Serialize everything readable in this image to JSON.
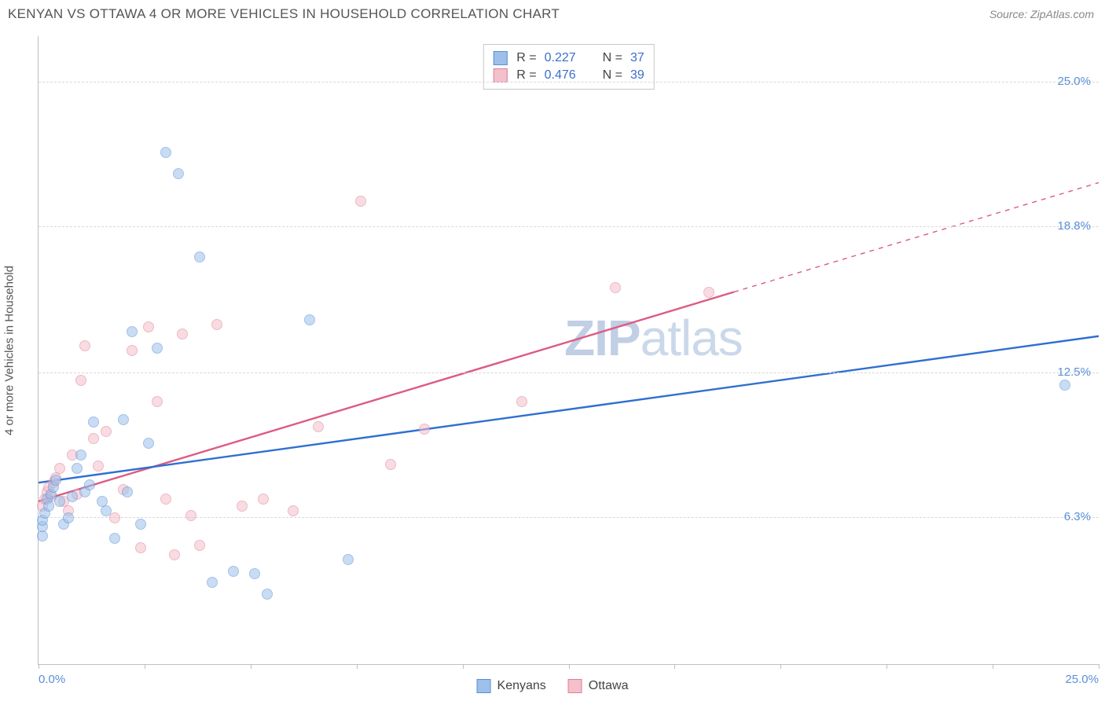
{
  "header": {
    "title": "KENYAN VS OTTAWA 4 OR MORE VEHICLES IN HOUSEHOLD CORRELATION CHART",
    "source_label": "Source: ZipAtlas.com"
  },
  "watermark": {
    "bold": "ZIP",
    "rest": "atlas"
  },
  "y_axis_label": "4 or more Vehicles in Household",
  "chart": {
    "type": "scatter",
    "background_color": "#ffffff",
    "grid_color": "#d8d8d8",
    "axis_color": "#bfbfbf",
    "xlim": [
      0,
      25
    ],
    "ylim": [
      0,
      27
    ],
    "x_ticks": [
      0,
      2.5,
      5,
      7.5,
      10,
      12.5,
      15,
      17.5,
      20,
      22.5,
      25
    ],
    "x_tick_labels": {
      "0": "0.0%",
      "25": "25.0%"
    },
    "y_gridlines": [
      6.3,
      12.5,
      18.8,
      25.0
    ],
    "y_tick_labels": [
      "6.3%",
      "12.5%",
      "18.8%",
      "25.0%"
    ],
    "marker_radius": 7,
    "marker_opacity": 0.55,
    "series": {
      "kenyans": {
        "label": "Kenyans",
        "fill": "#9cc0ea",
        "stroke": "#5b8fd6",
        "trend_color": "#2f6fd1",
        "trend_width": 2.4,
        "R": "0.227",
        "N": "37",
        "trend": {
          "x1": 0,
          "y1": 7.8,
          "x2": 25,
          "y2": 14.1
        },
        "points": [
          [
            0.1,
            5.5
          ],
          [
            0.1,
            5.9
          ],
          [
            0.1,
            6.2
          ],
          [
            0.15,
            6.5
          ],
          [
            0.2,
            7.1
          ],
          [
            0.25,
            6.8
          ],
          [
            0.3,
            7.3
          ],
          [
            0.35,
            7.6
          ],
          [
            0.4,
            7.9
          ],
          [
            0.5,
            7.0
          ],
          [
            0.6,
            6.0
          ],
          [
            0.7,
            6.3
          ],
          [
            0.8,
            7.2
          ],
          [
            0.9,
            8.4
          ],
          [
            1.0,
            9.0
          ],
          [
            1.1,
            7.4
          ],
          [
            1.2,
            7.7
          ],
          [
            1.3,
            10.4
          ],
          [
            1.5,
            7.0
          ],
          [
            1.6,
            6.6
          ],
          [
            1.8,
            5.4
          ],
          [
            2.0,
            10.5
          ],
          [
            2.1,
            7.4
          ],
          [
            2.2,
            14.3
          ],
          [
            2.4,
            6.0
          ],
          [
            2.6,
            9.5
          ],
          [
            2.8,
            13.6
          ],
          [
            3.0,
            22.0
          ],
          [
            3.3,
            21.1
          ],
          [
            3.8,
            17.5
          ],
          [
            4.1,
            3.5
          ],
          [
            4.6,
            4.0
          ],
          [
            5.1,
            3.9
          ],
          [
            5.4,
            3.0
          ],
          [
            6.4,
            14.8
          ],
          [
            7.3,
            4.5
          ],
          [
            24.2,
            12.0
          ]
        ]
      },
      "ottawa": {
        "label": "Ottawa",
        "fill": "#f3c0cc",
        "stroke": "#e07f9a",
        "trend_color": "#dc5c82",
        "trend_width": 2.4,
        "R": "0.476",
        "N": "39",
        "trend_solid": {
          "x1": 0,
          "y1": 7.0,
          "x2": 16.4,
          "y2": 16.0
        },
        "trend_dash": {
          "x1": 16.4,
          "y1": 16.0,
          "x2": 25,
          "y2": 20.7
        },
        "points": [
          [
            0.1,
            6.8
          ],
          [
            0.15,
            7.1
          ],
          [
            0.2,
            7.4
          ],
          [
            0.25,
            7.6
          ],
          [
            0.3,
            7.2
          ],
          [
            0.35,
            7.8
          ],
          [
            0.4,
            8.0
          ],
          [
            0.5,
            8.4
          ],
          [
            0.6,
            7.0
          ],
          [
            0.7,
            6.6
          ],
          [
            0.8,
            9.0
          ],
          [
            0.9,
            7.3
          ],
          [
            1.0,
            12.2
          ],
          [
            1.1,
            13.7
          ],
          [
            1.3,
            9.7
          ],
          [
            1.4,
            8.5
          ],
          [
            1.6,
            10.0
          ],
          [
            1.8,
            6.3
          ],
          [
            2.0,
            7.5
          ],
          [
            2.2,
            13.5
          ],
          [
            2.4,
            5.0
          ],
          [
            2.6,
            14.5
          ],
          [
            2.8,
            11.3
          ],
          [
            3.0,
            7.1
          ],
          [
            3.2,
            4.7
          ],
          [
            3.4,
            14.2
          ],
          [
            3.6,
            6.4
          ],
          [
            3.8,
            5.1
          ],
          [
            4.2,
            14.6
          ],
          [
            4.8,
            6.8
          ],
          [
            5.3,
            7.1
          ],
          [
            6.0,
            6.6
          ],
          [
            6.6,
            10.2
          ],
          [
            7.6,
            19.9
          ],
          [
            8.3,
            8.6
          ],
          [
            9.1,
            10.1
          ],
          [
            11.4,
            11.3
          ],
          [
            13.6,
            16.2
          ],
          [
            15.8,
            16.0
          ]
        ]
      }
    }
  },
  "legend_top": [
    {
      "series": "kenyans"
    },
    {
      "series": "ottawa"
    }
  ],
  "legend_bottom": [
    {
      "series": "kenyans"
    },
    {
      "series": "ottawa"
    }
  ]
}
